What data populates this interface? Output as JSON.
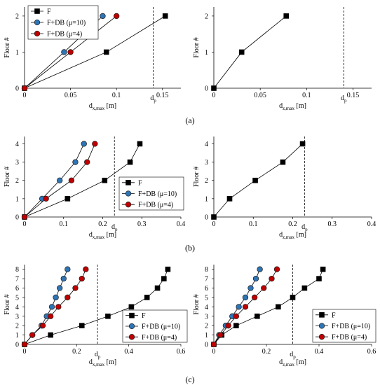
{
  "chart_data": [
    {
      "type": "line",
      "panel": "a",
      "side": "left",
      "xlabel": "d",
      "xlabel_sub": "x,max",
      "xlabel_unit": " [m]",
      "ylabel": "Floor #",
      "xlim": [
        0,
        0.17
      ],
      "ylim": [
        0,
        2.25
      ],
      "xticks": [
        "0",
        "0.05",
        "0.1",
        "0.15"
      ],
      "xtick_vals": [
        0,
        0.05,
        0.1,
        0.15
      ],
      "yticks": [
        "0",
        "1",
        "2"
      ],
      "ytick_vals": [
        0,
        1,
        2
      ],
      "dp": 0.14,
      "dp_label": "d",
      "dp_sub": "p",
      "legend_pos": "top-left",
      "series": [
        {
          "name": "F",
          "marker": "square",
          "color": "#000000",
          "x": [
            0,
            0.089,
            0.153
          ],
          "y": [
            0,
            1,
            2
          ]
        },
        {
          "name": "F+DB (μ=10)",
          "marker": "circle",
          "color": "#2E75B6",
          "x": [
            0,
            0.043,
            0.085
          ],
          "y": [
            0,
            1,
            2
          ]
        },
        {
          "name": "F+DB (μ=4)",
          "marker": "circle",
          "color": "#C00000",
          "x": [
            0,
            0.05,
            0.1
          ],
          "y": [
            0,
            1,
            2
          ]
        }
      ]
    },
    {
      "type": "line",
      "panel": "a",
      "side": "right",
      "xlabel": "d",
      "xlabel_sub": "z,max",
      "xlabel_unit": " [m]",
      "ylabel": "Floor #",
      "xlim": [
        0,
        0.17
      ],
      "ylim": [
        0,
        2.25
      ],
      "xticks": [
        "0",
        "0.05",
        "0.1",
        "0.15"
      ],
      "xtick_vals": [
        0,
        0.05,
        0.1,
        0.15
      ],
      "yticks": [
        "0",
        "1",
        "2"
      ],
      "ytick_vals": [
        0,
        1,
        2
      ],
      "dp": 0.14,
      "dp_label": "d",
      "dp_sub": "p",
      "series": [
        {
          "name": "F",
          "marker": "square",
          "color": "#000000",
          "x": [
            0,
            0.03,
            0.078
          ],
          "y": [
            0,
            1,
            2
          ]
        }
      ]
    },
    {
      "type": "line",
      "panel": "b",
      "side": "left",
      "xlabel": "d",
      "xlabel_sub": "x,max",
      "xlabel_unit": " [m]",
      "ylabel": "Floor #",
      "xlim": [
        0,
        0.4
      ],
      "ylim": [
        0,
        4.4
      ],
      "xticks": [
        "0",
        "0.1",
        "0.2",
        "0.3",
        "0.4"
      ],
      "xtick_vals": [
        0,
        0.1,
        0.2,
        0.3,
        0.4
      ],
      "yticks": [
        "0",
        "1",
        "2",
        "3",
        "4"
      ],
      "ytick_vals": [
        0,
        1,
        2,
        3,
        4
      ],
      "dp": 0.23,
      "dp_label": "d",
      "dp_sub": "p",
      "legend_pos": "bottom-right",
      "series": [
        {
          "name": "F",
          "marker": "square",
          "color": "#000000",
          "x": [
            0,
            0.11,
            0.205,
            0.27,
            0.295
          ],
          "y": [
            0,
            1,
            2,
            3,
            4
          ]
        },
        {
          "name": "F+DB (μ=10)",
          "marker": "circle",
          "color": "#2E75B6",
          "x": [
            0,
            0.045,
            0.09,
            0.13,
            0.152
          ],
          "y": [
            0,
            1,
            2,
            3,
            4
          ]
        },
        {
          "name": "F+DB (μ=4)",
          "marker": "circle",
          "color": "#C00000",
          "x": [
            0,
            0.055,
            0.12,
            0.16,
            0.18
          ],
          "y": [
            0,
            1,
            2,
            3,
            4
          ]
        }
      ]
    },
    {
      "type": "line",
      "panel": "b",
      "side": "right",
      "xlabel": "d",
      "xlabel_sub": "z,max",
      "xlabel_unit": " [m]",
      "ylabel": "Floor #",
      "xlim": [
        0,
        0.4
      ],
      "ylim": [
        0,
        4.4
      ],
      "xticks": [
        "0",
        "0.1",
        "0.2",
        "0.3",
        "0.4"
      ],
      "xtick_vals": [
        0,
        0.1,
        0.2,
        0.3,
        0.4
      ],
      "yticks": [
        "0",
        "1",
        "2",
        "3",
        "4"
      ],
      "ytick_vals": [
        0,
        1,
        2,
        3,
        4
      ],
      "dp": 0.23,
      "dp_label": "d",
      "dp_sub": "p",
      "series": [
        {
          "name": "F",
          "marker": "square",
          "color": "#000000",
          "x": [
            0,
            0.04,
            0.105,
            0.175,
            0.225
          ],
          "y": [
            0,
            1,
            2,
            3,
            4
          ]
        }
      ]
    },
    {
      "type": "line",
      "panel": "c",
      "side": "left",
      "xlabel": "d",
      "xlabel_sub": "x,max",
      "xlabel_unit": " [m]",
      "ylabel": "Floor #",
      "xlim": [
        0,
        0.6
      ],
      "ylim": [
        0,
        8.5
      ],
      "xticks": [
        "0",
        "0.2",
        "0.4",
        "0.6"
      ],
      "xtick_vals": [
        0,
        0.2,
        0.4,
        0.6
      ],
      "yticks": [
        "0",
        "1",
        "2",
        "3",
        "4",
        "5",
        "6",
        "7",
        "8"
      ],
      "ytick_vals": [
        0,
        1,
        2,
        3,
        4,
        5,
        6,
        7,
        8
      ],
      "dp": 0.28,
      "dp_label": "d",
      "dp_sub": "p",
      "legend_pos": "bottom-right",
      "series": [
        {
          "name": "F",
          "marker": "square",
          "color": "#000000",
          "x": [
            0,
            0.1,
            0.22,
            0.32,
            0.41,
            0.47,
            0.51,
            0.535,
            0.55
          ],
          "y": [
            0,
            1,
            2,
            3,
            4,
            5,
            6,
            7,
            8
          ]
        },
        {
          "name": "F+DB (μ=10)",
          "marker": "circle",
          "color": "#2E75B6",
          "x": [
            0,
            0.03,
            0.065,
            0.085,
            0.105,
            0.12,
            0.135,
            0.15,
            0.165
          ],
          "y": [
            0,
            1,
            2,
            3,
            4,
            5,
            6,
            7,
            8
          ]
        },
        {
          "name": "F+DB (μ=4)",
          "marker": "circle",
          "color": "#C00000",
          "x": [
            0,
            0.03,
            0.07,
            0.1,
            0.13,
            0.165,
            0.195,
            0.22,
            0.235
          ],
          "y": [
            0,
            1,
            2,
            3,
            4,
            5,
            6,
            7,
            8
          ]
        }
      ]
    },
    {
      "type": "line",
      "panel": "c",
      "side": "right",
      "xlabel": "d",
      "xlabel_sub": "z,max",
      "xlabel_unit": " [m]",
      "ylabel": "Floor #",
      "xlim": [
        0,
        0.6
      ],
      "ylim": [
        0,
        8.5
      ],
      "xticks": [
        "0",
        "0.2",
        "0.4",
        "0.6"
      ],
      "xtick_vals": [
        0,
        0.2,
        0.4,
        0.6
      ],
      "yticks": [
        "0",
        "1",
        "2",
        "3",
        "4",
        "5",
        "6",
        "7",
        "8"
      ],
      "ytick_vals": [
        0,
        1,
        2,
        3,
        4,
        5,
        6,
        7,
        8
      ],
      "dp": 0.3,
      "dp_label": "d",
      "dp_sub": "p",
      "legend_pos": "bottom-right",
      "series": [
        {
          "name": "F",
          "marker": "square",
          "color": "#000000",
          "x": [
            0,
            0.03,
            0.085,
            0.165,
            0.245,
            0.3,
            0.345,
            0.4,
            0.415
          ],
          "y": [
            0,
            1,
            2,
            3,
            4,
            5,
            6,
            7,
            8
          ]
        },
        {
          "name": "F+DB (μ=10)",
          "marker": "circle",
          "color": "#2E75B6",
          "x": [
            0,
            0.02,
            0.045,
            0.07,
            0.095,
            0.12,
            0.14,
            0.16,
            0.175
          ],
          "y": [
            0,
            1,
            2,
            3,
            4,
            5,
            6,
            7,
            8
          ]
        },
        {
          "name": "F+DB (μ=4)",
          "marker": "circle",
          "color": "#C00000",
          "x": [
            0,
            0.025,
            0.055,
            0.085,
            0.12,
            0.155,
            0.19,
            0.22,
            0.24
          ],
          "y": [
            0,
            1,
            2,
            3,
            4,
            5,
            6,
            7,
            8
          ]
        }
      ]
    }
  ],
  "panel_labels": [
    "(a)",
    "(b)",
    "(c)"
  ]
}
